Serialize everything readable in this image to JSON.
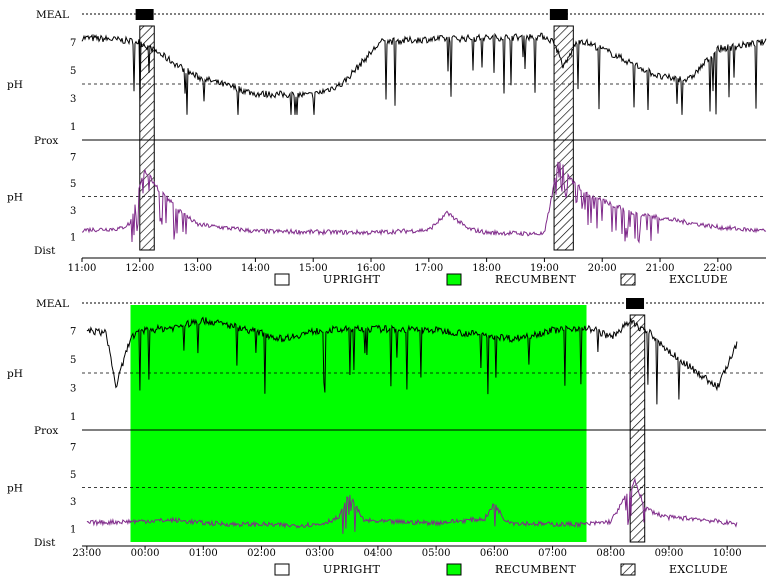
{
  "chart_data": [
    {
      "type": "line",
      "title": "",
      "meal_label": "MEAL",
      "meal_events": [
        "12:05",
        "19:15"
      ],
      "exclude_periods": [
        [
          "12:00",
          "12:15"
        ],
        [
          "19:10",
          "19:30"
        ]
      ],
      "recumbent_periods": [],
      "x_ticks": [
        "11:00",
        "12:00",
        "13:00",
        "14:00",
        "15:00",
        "16:00",
        "17:00",
        "18:00",
        "19:00",
        "20:00",
        "21:00",
        "22:00"
      ],
      "x_range": [
        "11:00",
        "22:50"
      ],
      "y_range": [
        0,
        8
      ],
      "y_ticks": [
        1,
        3,
        5,
        7
      ],
      "reference_ph": 4,
      "channels": [
        {
          "name": "Prox",
          "ylabel": "pH",
          "color": "#000000",
          "times": [
            "11:00",
            "11:30",
            "12:00",
            "12:20",
            "12:40",
            "13:00",
            "14:00",
            "15:00",
            "15:30",
            "15:50",
            "16:10",
            "17:00",
            "18:00",
            "19:00",
            "19:10",
            "19:20",
            "19:35",
            "20:00",
            "21:00",
            "21:30",
            "22:00",
            "22:50"
          ],
          "values": [
            7.3,
            7.2,
            7.0,
            6.2,
            5.3,
            4.5,
            3.3,
            3.2,
            4.0,
            5.5,
            7.0,
            7.2,
            7.3,
            7.4,
            7.0,
            5.2,
            7.2,
            6.5,
            4.5,
            4.3,
            6.5,
            7.0
          ]
        },
        {
          "name": "Dist",
          "ylabel": "pH",
          "color": "#7f2a8a",
          "times": [
            "11:00",
            "11:40",
            "11:50",
            "12:05",
            "12:20",
            "12:40",
            "13:00",
            "14:00",
            "16:00",
            "17:00",
            "17:20",
            "17:40",
            "18:00",
            "19:00",
            "19:15",
            "19:30",
            "19:50",
            "20:30",
            "21:00",
            "22:00",
            "22:50"
          ],
          "values": [
            1.5,
            1.6,
            2.0,
            6.0,
            4.5,
            3.0,
            1.9,
            1.4,
            1.3,
            1.5,
            2.8,
            1.6,
            1.3,
            1.2,
            6.8,
            5.0,
            4.0,
            2.8,
            2.4,
            1.7,
            1.4
          ]
        }
      ],
      "legend": [
        "UPRIGHT",
        "RECUMBENT",
        "EXCLUDE"
      ]
    },
    {
      "type": "line",
      "title": "",
      "meal_label": "MEAL",
      "meal_events": [
        "08:25"
      ],
      "exclude_periods": [
        [
          "08:20",
          "08:35"
        ]
      ],
      "recumbent_periods": [
        [
          "23:45",
          "07:35"
        ]
      ],
      "x_ticks": [
        "23:00",
        "00:00",
        "01:00",
        "02:00",
        "03:00",
        "04:00",
        "05:00",
        "06:00",
        "07:00",
        "08:00",
        "09:00",
        "10:00"
      ],
      "x_range": [
        "22:55",
        "10:40"
      ],
      "y_range": [
        0,
        8
      ],
      "y_ticks": [
        1,
        3,
        5,
        7
      ],
      "reference_ph": 4,
      "channels": [
        {
          "name": "Prox",
          "ylabel": "pH",
          "color": "#000000",
          "times": [
            "23:00",
            "23:20",
            "23:30",
            "23:45",
            "00:00",
            "00:30",
            "01:00",
            "01:30",
            "02:00",
            "02:20",
            "03:00",
            "04:00",
            "05:00",
            "06:00",
            "06:20",
            "07:00",
            "07:30",
            "07:45",
            "08:00",
            "08:20",
            "08:40",
            "09:00",
            "09:30",
            "09:50",
            "10:10"
          ],
          "values": [
            7.0,
            6.8,
            3.0,
            6.5,
            7.0,
            7.2,
            7.7,
            7.3,
            6.8,
            6.4,
            7.0,
            7.1,
            7.0,
            6.6,
            6.4,
            7.0,
            7.2,
            7.0,
            6.5,
            7.6,
            6.8,
            5.5,
            4.0,
            3.0,
            6.0
          ]
        },
        {
          "name": "Dist",
          "ylabel": "pH",
          "color": "#7f2a8a",
          "times": [
            "23:00",
            "23:40",
            "00:30",
            "01:00",
            "01:30",
            "02:00",
            "02:30",
            "03:00",
            "03:20",
            "03:30",
            "03:45",
            "04:00",
            "05:00",
            "05:50",
            "06:00",
            "06:10",
            "06:20",
            "07:00",
            "07:35",
            "08:00",
            "08:25",
            "08:35",
            "08:50",
            "09:00",
            "09:30",
            "10:00",
            "10:10"
          ],
          "values": [
            1.4,
            1.5,
            1.6,
            1.4,
            1.3,
            1.3,
            1.2,
            1.3,
            1.8,
            3.5,
            1.6,
            1.5,
            1.4,
            1.7,
            2.8,
            1.7,
            1.4,
            1.3,
            1.3,
            1.5,
            4.5,
            2.5,
            2.0,
            1.8,
            1.7,
            1.4,
            1.3
          ]
        }
      ],
      "legend": [
        "UPRIGHT",
        "RECUMBENT",
        "EXCLUDE"
      ]
    }
  ],
  "legend_colors": {
    "upright": "#ffffff",
    "recumbent": "#00ff00",
    "exclude": "hatch"
  }
}
